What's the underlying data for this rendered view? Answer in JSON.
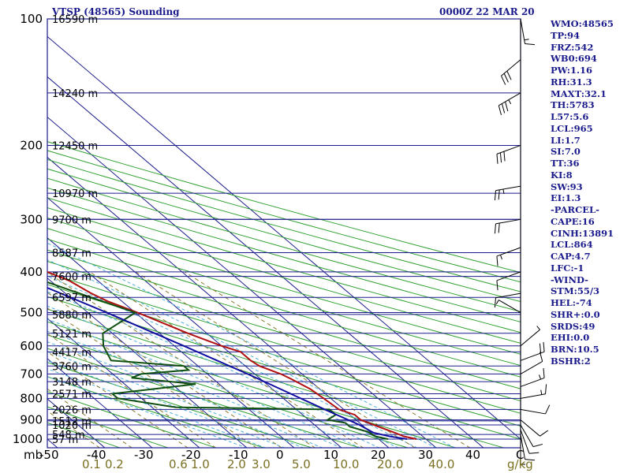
{
  "header": {
    "station": "VTSP (48565) Sounding",
    "datetime": "0000Z 22 MAR 20"
  },
  "indices": [
    "WMO:48565",
    "TP:94",
    "FRZ:542",
    "WB0:694",
    "PW:1.16",
    "RH:31.3",
    "MAXT:32.1",
    "TH:5783",
    "L57:5.6",
    "LCL:965",
    "LI:1.7",
    "SI:7.0",
    "TT:36",
    "KI:8",
    "SW:93",
    "EI:1.3",
    "-PARCEL-",
    "CAPE:16",
    "CINH:13891",
    "LCL:864",
    "CAP:4.7",
    "LFC:-1",
    "-WIND-",
    "STM:55/3",
    "HEL:-74",
    "SHR+:0.0",
    "SRDS:49",
    "EHI:0.0",
    "BRN:10.5",
    "BSHR:2"
  ],
  "colors": {
    "isobar": "#1c1c8c",
    "isotherm": "#1c1c8c",
    "dry_adiabat": "#30a030",
    "moist_adiabat": "#50b0d8",
    "mixing_ratio": "#8a7d30",
    "temperature": "#b01010",
    "dewpoint": "#105010",
    "parcel": "#1010a0",
    "wind": "#000000"
  },
  "chart_data": {
    "type": "skew-t",
    "pressure_axis": {
      "unit": "mb",
      "levels": [
        100,
        200,
        300,
        400,
        500,
        600,
        700,
        800,
        900,
        1000
      ],
      "range": [
        100,
        1000
      ]
    },
    "temperature_axis": {
      "ticks": [
        -50,
        -40,
        -30,
        -20,
        -10,
        0,
        10,
        20,
        30,
        40
      ],
      "range": [
        -50,
        50
      ],
      "end_label": "C"
    },
    "mixing_ratio_axis": {
      "ticks": [
        "0.1",
        "0.2",
        "0.6",
        "1.0",
        "2.0",
        "3.0",
        "5.0",
        "10.0",
        "20.0",
        "40.0"
      ],
      "values": [
        0.1,
        0.2,
        0.6,
        1.0,
        2.0,
        3.0,
        5.0,
        10.0,
        20.0,
        40.0
      ],
      "unit": "g/kg"
    },
    "heights": [
      {
        "p": 1000,
        "label": "57 m"
      },
      {
        "p": 975,
        "label": "548 m"
      },
      {
        "p": 925,
        "label": "1020 m"
      },
      {
        "p": 905,
        "label": "1512 m"
      },
      {
        "p": 850,
        "label": "2026 m"
      },
      {
        "p": 780,
        "label": "2571 m"
      },
      {
        "p": 730,
        "label": "3148 m"
      },
      {
        "p": 670,
        "label": "3760 m"
      },
      {
        "p": 620,
        "label": "4417 m"
      },
      {
        "p": 560,
        "label": "5121 m"
      },
      {
        "p": 505,
        "label": "5880 m"
      },
      {
        "p": 460,
        "label": "6597 m"
      },
      {
        "p": 410,
        "label": "7600 m"
      },
      {
        "p": 360,
        "label": "8587 m"
      },
      {
        "p": 300,
        "label": "9700 m"
      },
      {
        "p": 260,
        "label": "10970 m"
      },
      {
        "p": 200,
        "label": "12450 m"
      },
      {
        "p": 150,
        "label": "14240 m"
      },
      {
        "p": 100,
        "label": "16590 m"
      }
    ],
    "series": [
      {
        "key": "temperature",
        "points": [
          [
            1000,
            28.0
          ],
          [
            985,
            26.0
          ],
          [
            965,
            25.0
          ],
          [
            925,
            22.5
          ],
          [
            900,
            21.0
          ],
          [
            875,
            21.0
          ],
          [
            850,
            19.0
          ],
          [
            800,
            18.5
          ],
          [
            760,
            18.0
          ],
          [
            720,
            16.5
          ],
          [
            700,
            15.5
          ],
          [
            670,
            13.0
          ],
          [
            650,
            12.5
          ],
          [
            620,
            12.5
          ],
          [
            600,
            10.0
          ],
          [
            560,
            6.0
          ],
          [
            500,
            0.5
          ],
          [
            470,
            -3.0
          ],
          [
            450,
            -4.5
          ],
          [
            420,
            -6.0
          ],
          [
            400,
            -8.5
          ],
          [
            350,
            -13.5
          ],
          [
            300,
            -20.5
          ],
          [
            250,
            -27.5
          ],
          [
            210,
            -36.0
          ],
          [
            200,
            -37.0
          ],
          [
            180,
            -41.0
          ],
          [
            160,
            -45.5
          ],
          [
            150,
            -48.0
          ],
          [
            130,
            -54.0
          ],
          [
            110,
            -63.0
          ],
          [
            100,
            -67.0
          ]
        ]
      },
      {
        "key": "dewpoint",
        "points": [
          [
            1000,
            22.0
          ],
          [
            985,
            20.0
          ],
          [
            960,
            19.5
          ],
          [
            935,
            17.0
          ],
          [
            915,
            17.0
          ],
          [
            900,
            14.0
          ],
          [
            875,
            17.0
          ],
          [
            850,
            17.0
          ],
          [
            840,
            -15.0
          ],
          [
            800,
            -25.0
          ],
          [
            780,
            -25.0
          ],
          [
            740,
            -5.0
          ],
          [
            715,
            -17.0
          ],
          [
            700,
            -14.0
          ],
          [
            685,
            -3.0
          ],
          [
            670,
            -3.0
          ],
          [
            650,
            -17.0
          ],
          [
            600,
            -15.0
          ],
          [
            560,
            -12.0
          ],
          [
            500,
            0.0
          ],
          [
            450,
            -7.0
          ],
          [
            420,
            -11.5
          ],
          [
            400,
            -13.0
          ],
          [
            350,
            -13.5
          ],
          [
            310,
            -21.0
          ],
          [
            290,
            -21.0
          ],
          [
            270,
            -24.5
          ],
          [
            245,
            -28.5
          ],
          [
            225,
            -36.0
          ],
          [
            200,
            -35.0
          ],
          [
            170,
            -43.0
          ],
          [
            150,
            -45.5
          ],
          [
            130,
            -48.0
          ],
          [
            120,
            -50.0
          ],
          [
            110,
            -55.0
          ],
          [
            100,
            -63.5
          ]
        ]
      },
      {
        "key": "parcel",
        "points": [
          [
            1000,
            26.0
          ],
          [
            985,
            23.0
          ],
          [
            965,
            20.5
          ],
          [
            925,
            19.5
          ],
          [
            850,
            16.0
          ],
          [
            700,
            8.5
          ],
          [
            600,
            2.0
          ],
          [
            500,
            -6.0
          ],
          [
            400,
            -16.5
          ],
          [
            300,
            -31.0
          ],
          [
            250,
            -41.0
          ],
          [
            200,
            -53.0
          ],
          [
            150,
            -67.0
          ],
          [
            125,
            -76.0
          ],
          [
            110,
            -82.0
          ],
          [
            100,
            -86.0
          ]
        ]
      }
    ],
    "wind_barbs": [
      {
        "p": 1000,
        "dir": 180,
        "spd": 5
      },
      {
        "p": 975,
        "dir": 170,
        "spd": 10
      },
      {
        "p": 950,
        "dir": 160,
        "spd": 10
      },
      {
        "p": 925,
        "dir": 150,
        "spd": 10
      },
      {
        "p": 900,
        "dir": 130,
        "spd": 10
      },
      {
        "p": 850,
        "dir": 100,
        "spd": 10
      },
      {
        "p": 800,
        "dir": 80,
        "spd": 15
      },
      {
        "p": 750,
        "dir": 70,
        "spd": 15
      },
      {
        "p": 700,
        "dir": 60,
        "spd": 10
      },
      {
        "p": 650,
        "dir": 70,
        "spd": 20
      },
      {
        "p": 600,
        "dir": 50,
        "spd": 5
      },
      {
        "p": 500,
        "dir": 300,
        "spd": 5
      },
      {
        "p": 450,
        "dir": 260,
        "spd": 10
      },
      {
        "p": 400,
        "dir": 250,
        "spd": 10
      },
      {
        "p": 350,
        "dir": 250,
        "spd": 15
      },
      {
        "p": 300,
        "dir": 260,
        "spd": 20
      },
      {
        "p": 250,
        "dir": 260,
        "spd": 25
      },
      {
        "p": 200,
        "dir": 250,
        "spd": 30
      },
      {
        "p": 150,
        "dir": 240,
        "spd": 35
      },
      {
        "p": 125,
        "dir": 230,
        "spd": 30
      },
      {
        "p": 100,
        "dir": 170,
        "spd": 15
      }
    ]
  }
}
